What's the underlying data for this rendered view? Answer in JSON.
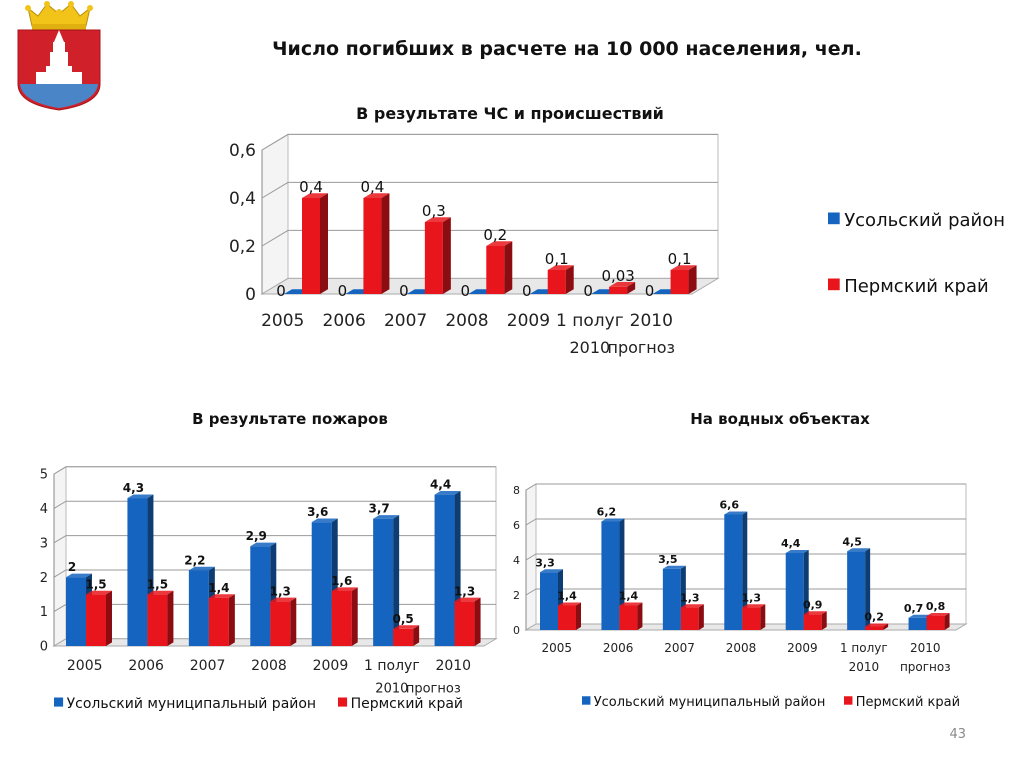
{
  "slide": {
    "title": "Число погибших в расчете на 10 000 населения, чел.",
    "page_number": "43"
  },
  "colors": {
    "usolye": "#1565c0",
    "perm": "#e8161c",
    "coat_red": "#d0202a",
    "coat_gold": "#f2c318",
    "coat_blue": "#4a86c7"
  },
  "chart_data": [
    {
      "id": "emergencies",
      "type": "bar",
      "title": "В результате ЧС и происшествий",
      "categories": [
        "2005",
        "2006",
        "2007",
        "2008",
        "2009",
        "1 полуг",
        "2010"
      ],
      "category_extra": [
        "",
        "",
        "",
        "",
        "",
        "2010",
        "прогноз"
      ],
      "series": [
        {
          "name": "Усольский район",
          "color": "#1565c0",
          "values": [
            0,
            0,
            0,
            0,
            0,
            0,
            0
          ],
          "labels": [
            "0",
            "0",
            "0",
            "0",
            "0",
            "0",
            "0"
          ]
        },
        {
          "name": "Пермский край",
          "color": "#e8161c",
          "values": [
            0.4,
            0.4,
            0.3,
            0.2,
            0.1,
            0.03,
            0.1
          ],
          "labels": [
            "0,4",
            "0,4",
            "0,3",
            "0,2",
            "0,1",
            "0,03",
            "0,1"
          ]
        }
      ],
      "ylim": [
        0,
        0.6
      ],
      "yticks": [
        "0",
        "0,2",
        "0,4",
        "0,6"
      ],
      "grid": true,
      "legend": "right"
    },
    {
      "id": "fires",
      "type": "bar",
      "title": "В результате пожаров",
      "categories": [
        "2005",
        "2006",
        "2007",
        "2008",
        "2009",
        "1 полуг",
        "2010"
      ],
      "category_extra": [
        "",
        "",
        "",
        "",
        "",
        "2010",
        "прогноз"
      ],
      "series": [
        {
          "name": "Усольский муниципальный район",
          "color": "#1565c0",
          "values": [
            2,
            4.3,
            2.2,
            2.9,
            3.6,
            3.7,
            4.4
          ],
          "labels": [
            "2",
            "4,3",
            "2,2",
            "2,9",
            "3,6",
            "3,7",
            "4,4"
          ]
        },
        {
          "name": "Пермский край",
          "color": "#e8161c",
          "values": [
            1.5,
            1.5,
            1.4,
            1.3,
            1.6,
            0.5,
            1.3
          ],
          "labels": [
            "1,5",
            "1,5",
            "1,4",
            "1,3",
            "1,6",
            "0,5",
            "1,3"
          ]
        }
      ],
      "ylim": [
        0,
        5
      ],
      "yticks": [
        "0",
        "1",
        "2",
        "3",
        "4",
        "5"
      ],
      "grid": true,
      "legend": "bottom"
    },
    {
      "id": "water",
      "type": "bar",
      "title": "На водных объектах",
      "categories": [
        "2005",
        "2006",
        "2007",
        "2008",
        "2009",
        "1 полуг",
        "2010"
      ],
      "category_extra": [
        "",
        "",
        "",
        "",
        "",
        "2010",
        "прогноз"
      ],
      "series": [
        {
          "name": "Усольский муниципальный район",
          "color": "#1565c0",
          "values": [
            3.3,
            6.2,
            3.5,
            6.6,
            4.4,
            4.5,
            0.7
          ],
          "labels": [
            "3,3",
            "6,2",
            "3,5",
            "6,6",
            "4,4",
            "4,5",
            "0,7"
          ]
        },
        {
          "name": "Пермский край",
          "color": "#e8161c",
          "values": [
            1.4,
            1.4,
            1.3,
            1.3,
            0.9,
            0.2,
            0.8
          ],
          "labels": [
            "1,4",
            "1,4",
            "1,3",
            "1,3",
            "0,9",
            "0,2",
            "0,8"
          ]
        }
      ],
      "ylim": [
        0,
        8
      ],
      "yticks": [
        "0",
        "2",
        "4",
        "6",
        "8"
      ],
      "grid": true,
      "legend": "bottom"
    }
  ]
}
